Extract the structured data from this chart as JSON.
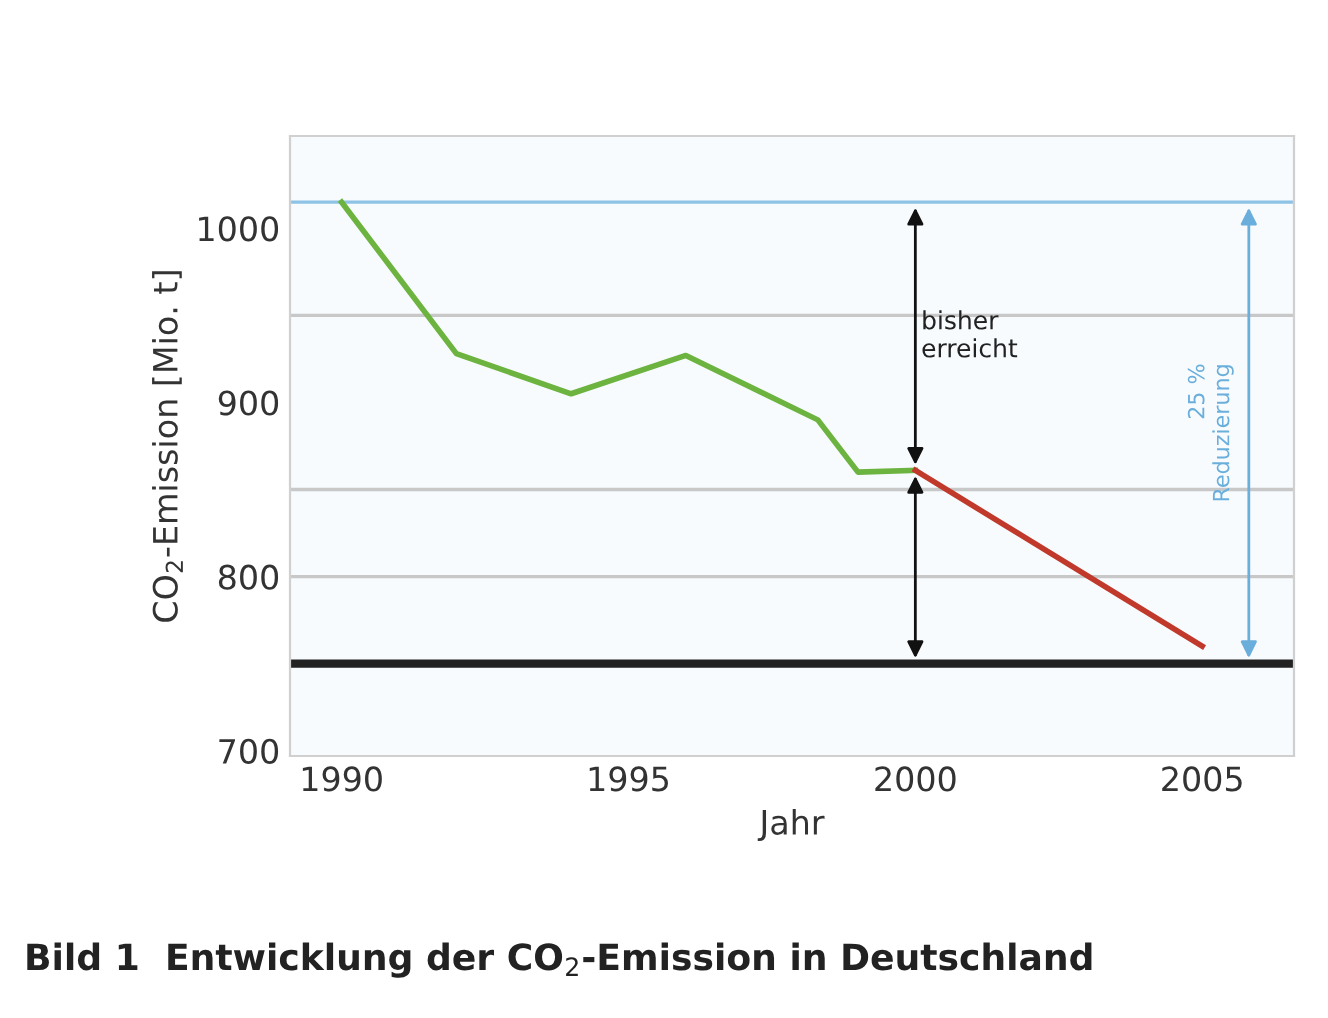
{
  "chart_data": {
    "type": "line",
    "xlabel": "Jahr",
    "ylabel": "CO$_{2}$-Emission [Mio. t]",
    "series": [
      {
        "color": "#6cb33f",
        "x": [
          1990,
          1992,
          1994,
          1996,
          1998.3,
          1999,
          2000
        ],
        "values": [
          1015,
          928,
          905,
          927,
          890,
          860,
          861
        ]
      },
      {
        "color": "#c0392b",
        "x": [
          2000,
          2005
        ],
        "values": [
          861,
          760
        ]
      }
    ],
    "xlim": [
      1989.1,
      2006.6
    ],
    "xticks": [
      1990,
      1995,
      2000,
      2005
    ],
    "ylim": [
      697,
      1053
    ],
    "yticks": [
      700,
      800,
      900,
      1000
    ],
    "ref_lines": [
      {
        "axis": "y",
        "value": 1015,
        "color": "#8ec3e6"
      },
      {
        "axis": "y",
        "value": 950,
        "color": "#c8c8c8"
      },
      {
        "axis": "y",
        "value": 850,
        "color": "#c8c8c8"
      },
      {
        "axis": "y",
        "value": 800,
        "color": "#c8c8c8"
      },
      {
        "axis": "y",
        "value": 750,
        "color": "#222222"
      }
    ],
    "annotations": [
      "bisher erreicht",
      "25 % Reduzierung",
      "Bild 1  Entwicklung der CO$_{2}$-Emission in Deutschland"
    ]
  }
}
